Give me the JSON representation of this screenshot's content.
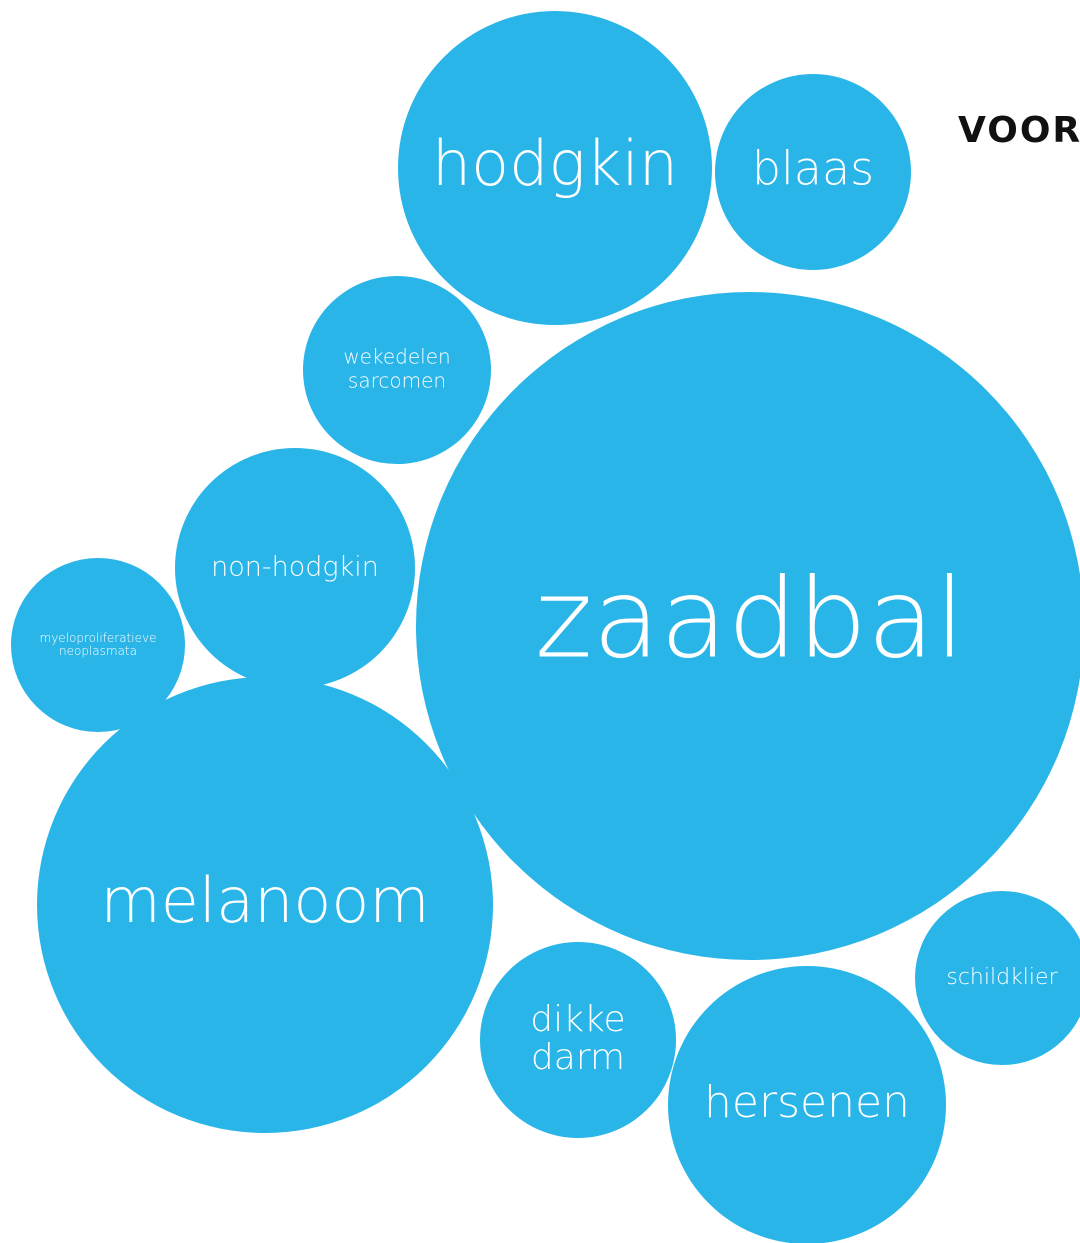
{
  "heading": "VOOR",
  "nodes": [
    {
      "label": [
        "hodgkin"
      ]
    },
    {
      "label": [
        "blaas"
      ]
    },
    {
      "label": [
        "wekedelen",
        "sarcomen"
      ]
    },
    {
      "label": [
        "zaadbal"
      ]
    },
    {
      "label": [
        "non-hodgkin"
      ]
    },
    {
      "label": [
        "myeloproliferatieve",
        "neoplasmata"
      ]
    },
    {
      "label": [
        "melanoom"
      ]
    },
    {
      "label": [
        "dikke",
        "darm"
      ]
    },
    {
      "label": [
        "hersenen"
      ]
    },
    {
      "label": [
        "schildklier"
      ]
    }
  ]
}
